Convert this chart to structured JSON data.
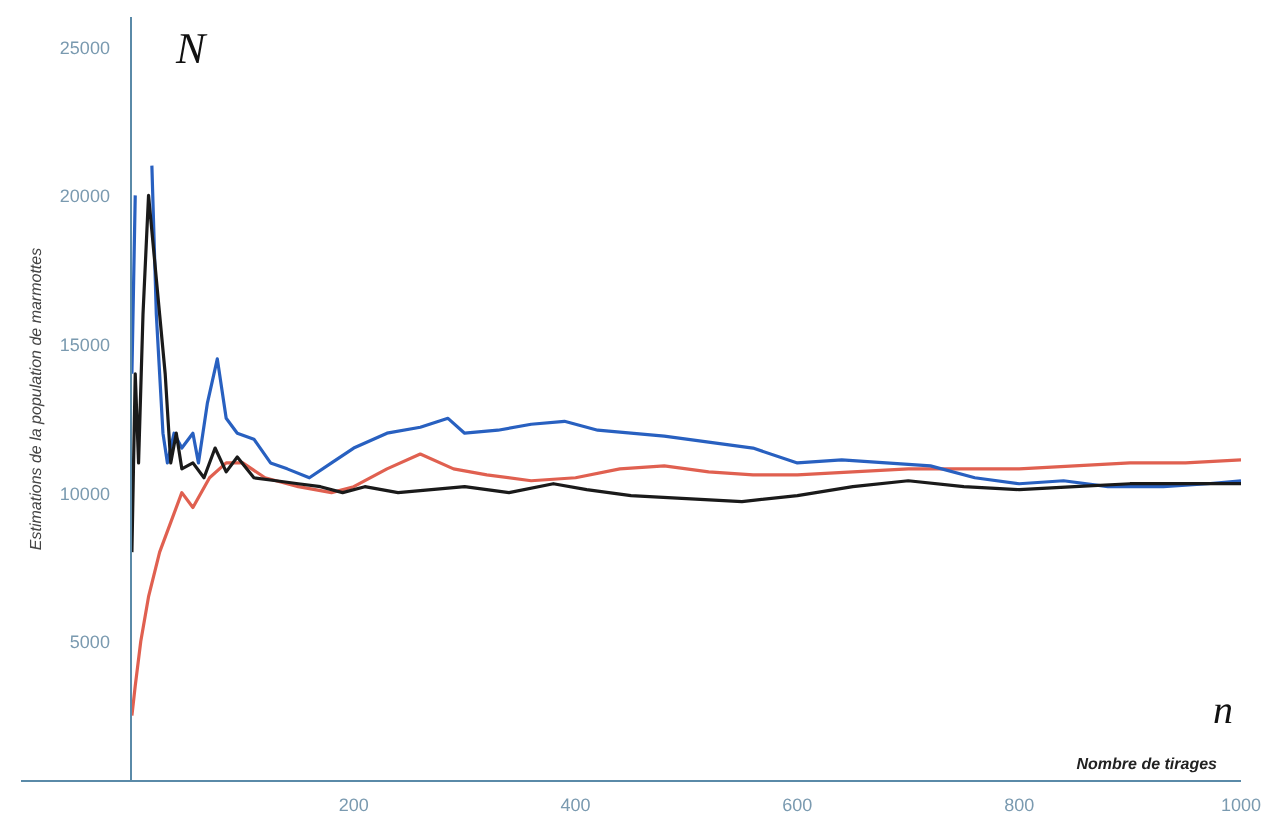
{
  "chart_data": {
    "type": "line",
    "xlabel": "Nombre de tirages",
    "ylabel": "Estimations de la population de marmottes",
    "annotations": [
      "N",
      "n"
    ],
    "xlim": [
      -100,
      1000
    ],
    "ylim": [
      300,
      26000
    ],
    "xticks": [
      200,
      400,
      600,
      800,
      1000
    ],
    "yticks": [
      5000,
      10000,
      15000,
      20000,
      25000
    ],
    "grid": false,
    "marker": "none",
    "line_style": "solid",
    "series": [
      {
        "color": "#e06050",
        "x": [
          0,
          3,
          8,
          15,
          25,
          35,
          45,
          55,
          70,
          85,
          100,
          120,
          150,
          180,
          200,
          230,
          260,
          290,
          320,
          360,
          400,
          440,
          480,
          520,
          560,
          600,
          650,
          700,
          750,
          800,
          850,
          900,
          950,
          1000
        ],
        "values": [
          2500,
          3500,
          5000,
          6500,
          8000,
          9000,
          10000,
          9500,
          10500,
          11000,
          11000,
          10500,
          10200,
          10000,
          10200,
          10800,
          11300,
          10800,
          10600,
          10400,
          10500,
          10800,
          10900,
          10700,
          10600,
          10600,
          10700,
          10800,
          10800,
          10800,
          10900,
          11000,
          11000,
          11100
        ]
      },
      {
        "color": "#2860c0",
        "x": [
          0,
          3,
          5,
          13,
          18,
          22,
          28,
          32,
          38,
          45,
          55,
          60,
          68,
          77,
          85,
          95,
          110,
          125,
          140,
          160,
          180,
          200,
          230,
          260,
          285,
          300,
          330,
          360,
          390,
          420,
          450,
          480,
          520,
          560,
          600,
          640,
          680,
          720,
          760,
          800,
          840,
          880,
          930,
          970,
          1000
        ],
        "values": [
          14000,
          20000,
          null,
          null,
          21000,
          16000,
          12000,
          11000,
          12000,
          11500,
          12000,
          11000,
          13000,
          14500,
          12500,
          12000,
          11800,
          11000,
          10800,
          10500,
          11000,
          11500,
          12000,
          12200,
          12500,
          12000,
          12100,
          12300,
          12400,
          12100,
          12000,
          11900,
          11700,
          11500,
          11000,
          11100,
          11000,
          10900,
          10500,
          10300,
          10400,
          10200,
          10200,
          10300,
          10400
        ]
      },
      {
        "color": "#1a1a1a",
        "x": [
          0,
          3,
          6,
          10,
          15,
          20,
          25,
          30,
          35,
          40,
          45,
          55,
          65,
          75,
          85,
          95,
          110,
          130,
          150,
          170,
          190,
          210,
          240,
          270,
          300,
          340,
          380,
          410,
          450,
          500,
          550,
          600,
          650,
          700,
          750,
          800,
          850,
          900,
          950,
          1000
        ],
        "values": [
          8000,
          14000,
          11000,
          16000,
          20000,
          18000,
          16000,
          14000,
          11000,
          12000,
          10800,
          11000,
          10500,
          11500,
          10700,
          11200,
          10500,
          10400,
          10300,
          10200,
          10000,
          10200,
          10000,
          10100,
          10200,
          10000,
          10300,
          10100,
          9900,
          9800,
          9700,
          9900,
          10200,
          10400,
          10200,
          10100,
          10200,
          10300,
          10300,
          10300
        ]
      }
    ]
  }
}
